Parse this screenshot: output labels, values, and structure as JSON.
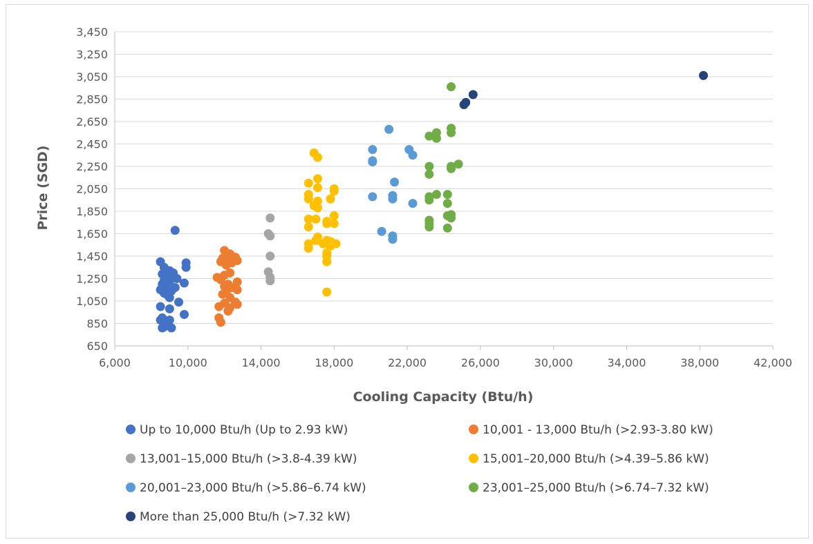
{
  "chart_data": {
    "type": "scatter",
    "title": "",
    "xlabel": "Cooling Capacity (Btu/h)",
    "ylabel": "Price (SGD)",
    "xlim": [
      6000,
      42000
    ],
    "ylim": [
      650,
      3450
    ],
    "xticks": [
      "6,000",
      "10,000",
      "14,000",
      "18,000",
      "22,000",
      "26,000",
      "30,000",
      "34,000",
      "38,000",
      "42,000"
    ],
    "yticks": [
      "650",
      "850",
      "1,050",
      "1,250",
      "1,450",
      "1,650",
      "1,850",
      "2,050",
      "2,250",
      "2,450",
      "2,650",
      "2,850",
      "3,050",
      "3,250",
      "3,450"
    ],
    "xtick_values": [
      6000,
      10000,
      14000,
      18000,
      22000,
      26000,
      30000,
      34000,
      38000,
      42000
    ],
    "ytick_values": [
      650,
      850,
      1050,
      1250,
      1450,
      1650,
      1850,
      2050,
      2250,
      2450,
      2650,
      2850,
      3050,
      3250,
      3450
    ],
    "grid": "horizontal",
    "legend_position": "bottom",
    "series": [
      {
        "name": "Up to 10,000 Btu/h (Up to 2.93 kW)",
        "color": "#4472c4",
        "points": [
          [
            9300,
            1680
          ],
          [
            8500,
            1400
          ],
          [
            9900,
            1390
          ],
          [
            9900,
            1350
          ],
          [
            8700,
            1350
          ],
          [
            9000,
            1320
          ],
          [
            9200,
            1300
          ],
          [
            8600,
            1290
          ],
          [
            8900,
            1280
          ],
          [
            9100,
            1260
          ],
          [
            9400,
            1250
          ],
          [
            8700,
            1230
          ],
          [
            9000,
            1220
          ],
          [
            9800,
            1210
          ],
          [
            8600,
            1200
          ],
          [
            8800,
            1180
          ],
          [
            9300,
            1170
          ],
          [
            8500,
            1150
          ],
          [
            9100,
            1140
          ],
          [
            8700,
            1120
          ],
          [
            8900,
            1100
          ],
          [
            9000,
            1080
          ],
          [
            9500,
            1040
          ],
          [
            8500,
            1000
          ],
          [
            9000,
            980
          ],
          [
            9800,
            930
          ],
          [
            8600,
            900
          ],
          [
            9000,
            880
          ],
          [
            8500,
            880
          ],
          [
            8800,
            860
          ],
          [
            8700,
            820
          ],
          [
            9100,
            810
          ],
          [
            8600,
            810
          ]
        ]
      },
      {
        "name": "10,001 - 13,000 Btu/h (>2.93-3.80 kW)",
        "color": "#ed7d31",
        "points": [
          [
            12000,
            1500
          ],
          [
            12300,
            1470
          ],
          [
            12100,
            1450
          ],
          [
            12600,
            1440
          ],
          [
            11900,
            1430
          ],
          [
            12200,
            1420
          ],
          [
            12700,
            1410
          ],
          [
            11800,
            1400
          ],
          [
            12400,
            1390
          ],
          [
            12100,
            1370
          ],
          [
            12300,
            1300
          ],
          [
            12000,
            1280
          ],
          [
            11600,
            1260
          ],
          [
            11800,
            1240
          ],
          [
            12700,
            1220
          ],
          [
            12200,
            1200
          ],
          [
            12000,
            1180
          ],
          [
            12400,
            1170
          ],
          [
            12700,
            1150
          ],
          [
            12100,
            1130
          ],
          [
            11900,
            1110
          ],
          [
            12300,
            1080
          ],
          [
            12600,
            1040
          ],
          [
            12000,
            1030
          ],
          [
            12700,
            1020
          ],
          [
            11700,
            1000
          ],
          [
            12300,
            990
          ],
          [
            12200,
            960
          ],
          [
            11700,
            900
          ],
          [
            11800,
            860
          ]
        ]
      },
      {
        "name": "13,001–15,000 Btu/h (>3.8-4.39 kW)",
        "color": "#a5a5a5",
        "points": [
          [
            14500,
            1790
          ],
          [
            14400,
            1650
          ],
          [
            14500,
            1630
          ],
          [
            14500,
            1450
          ],
          [
            14400,
            1310
          ],
          [
            14500,
            1260
          ],
          [
            14500,
            1230
          ]
        ]
      },
      {
        "name": "15,001–20,000 Btu/h (>4.39–5.86 kW)",
        "color": "#ffc000",
        "points": [
          [
            16900,
            2370
          ],
          [
            17100,
            2330
          ],
          [
            17100,
            2140
          ],
          [
            16600,
            2100
          ],
          [
            17100,
            2060
          ],
          [
            18000,
            2050
          ],
          [
            18000,
            2030
          ],
          [
            16600,
            2000
          ],
          [
            16600,
            1960
          ],
          [
            17800,
            1960
          ],
          [
            17100,
            1940
          ],
          [
            16900,
            1900
          ],
          [
            17100,
            1880
          ],
          [
            18000,
            1810
          ],
          [
            16600,
            1780
          ],
          [
            17000,
            1780
          ],
          [
            17600,
            1760
          ],
          [
            18000,
            1740
          ],
          [
            17600,
            1740
          ],
          [
            16600,
            1710
          ],
          [
            17100,
            1620
          ],
          [
            17000,
            1590
          ],
          [
            17600,
            1590
          ],
          [
            17800,
            1580
          ],
          [
            16600,
            1560
          ],
          [
            18100,
            1560
          ],
          [
            17400,
            1560
          ],
          [
            17800,
            1540
          ],
          [
            16600,
            1520
          ],
          [
            17600,
            1480
          ],
          [
            17600,
            1450
          ],
          [
            17600,
            1400
          ],
          [
            17600,
            1130
          ]
        ]
      },
      {
        "name": "20,001–23,000 Btu/h (>5.86–6.74 kW)",
        "color": "#5b9bd5",
        "points": [
          [
            21000,
            2580
          ],
          [
            20100,
            2400
          ],
          [
            22100,
            2400
          ],
          [
            22300,
            2350
          ],
          [
            20100,
            2300
          ],
          [
            20100,
            2290
          ],
          [
            21300,
            2110
          ],
          [
            20100,
            1980
          ],
          [
            21200,
            1990
          ],
          [
            21200,
            1960
          ],
          [
            22300,
            1920
          ],
          [
            20600,
            1670
          ],
          [
            21200,
            1630
          ],
          [
            21200,
            1600
          ]
        ]
      },
      {
        "name": "23,001–25,000 Btu/h (>6.74–7.32 kW)",
        "color": "#70ad47",
        "points": [
          [
            24400,
            2960
          ],
          [
            24400,
            2590
          ],
          [
            24400,
            2550
          ],
          [
            23600,
            2550
          ],
          [
            23600,
            2500
          ],
          [
            23200,
            2520
          ],
          [
            24800,
            2270
          ],
          [
            24400,
            2250
          ],
          [
            24400,
            2230
          ],
          [
            23200,
            2250
          ],
          [
            23200,
            2180
          ],
          [
            23600,
            2000
          ],
          [
            24200,
            2000
          ],
          [
            23200,
            1980
          ],
          [
            23200,
            1950
          ],
          [
            24200,
            1920
          ],
          [
            24400,
            1820
          ],
          [
            24200,
            1810
          ],
          [
            24400,
            1790
          ],
          [
            23200,
            1770
          ],
          [
            23200,
            1740
          ],
          [
            23200,
            1710
          ],
          [
            24200,
            1700
          ]
        ]
      },
      {
        "name": "More than 25,000 Btu/h (>7.32 kW)",
        "color": "#264478",
        "points": [
          [
            25600,
            2890
          ],
          [
            25200,
            2820
          ],
          [
            25100,
            2800
          ],
          [
            38200,
            3060
          ]
        ]
      }
    ]
  }
}
